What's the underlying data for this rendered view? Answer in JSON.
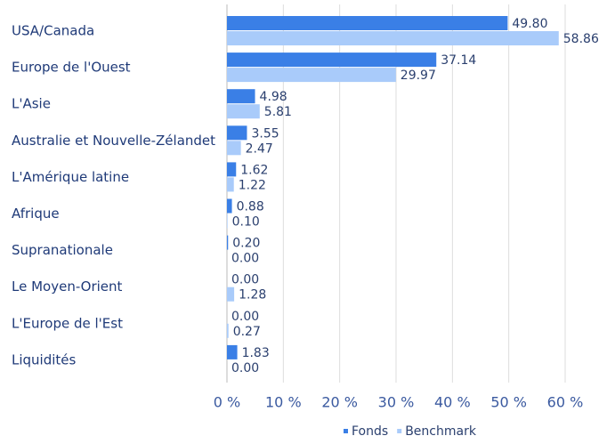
{
  "chart_data": {
    "type": "bar",
    "orientation": "horizontal",
    "categories": [
      "USA/Canada",
      "Europe de l'Ouest",
      "L'Asie",
      "Australie et Nouvelle-Zélandet",
      "L'Amérique latine",
      "Afrique",
      "Supranationale",
      "Le Moyen-Orient",
      "L'Europe de l'Est",
      "Liquidités"
    ],
    "series": [
      {
        "name": "Fonds",
        "color": "#3a7fe6",
        "values": [
          49.8,
          37.14,
          4.98,
          3.55,
          1.62,
          0.88,
          0.2,
          0,
          0,
          1.83
        ],
        "value_labels": [
          "49.80",
          "37.14",
          "4.98",
          "3.55",
          "1.62",
          "0.88",
          "0.20",
          "0.00",
          "0.00",
          "1.83"
        ]
      },
      {
        "name": "Benchmark",
        "color": "#a9cbfa",
        "values": [
          58.86,
          29.97,
          5.81,
          2.47,
          1.22,
          0.1,
          0,
          1.28,
          0.27,
          0
        ],
        "value_labels": [
          "58.86",
          "29.97",
          "5.81",
          "2.47",
          "1.22",
          "0.10",
          "0.00",
          "1.28",
          "0.27",
          "0.00"
        ]
      }
    ],
    "xlim": [
      0,
      60
    ],
    "xticks": [
      {
        "value": 0,
        "label": "0 %"
      },
      {
        "value": 10,
        "label": "10 %"
      },
      {
        "value": 20,
        "label": "20 %"
      },
      {
        "value": 30,
        "label": "30 %"
      },
      {
        "value": 40,
        "label": "40 %"
      },
      {
        "value": 50,
        "label": "50 %"
      },
      {
        "value": 60,
        "label": "60 %"
      }
    ],
    "grid": true,
    "legend": "bottom"
  }
}
